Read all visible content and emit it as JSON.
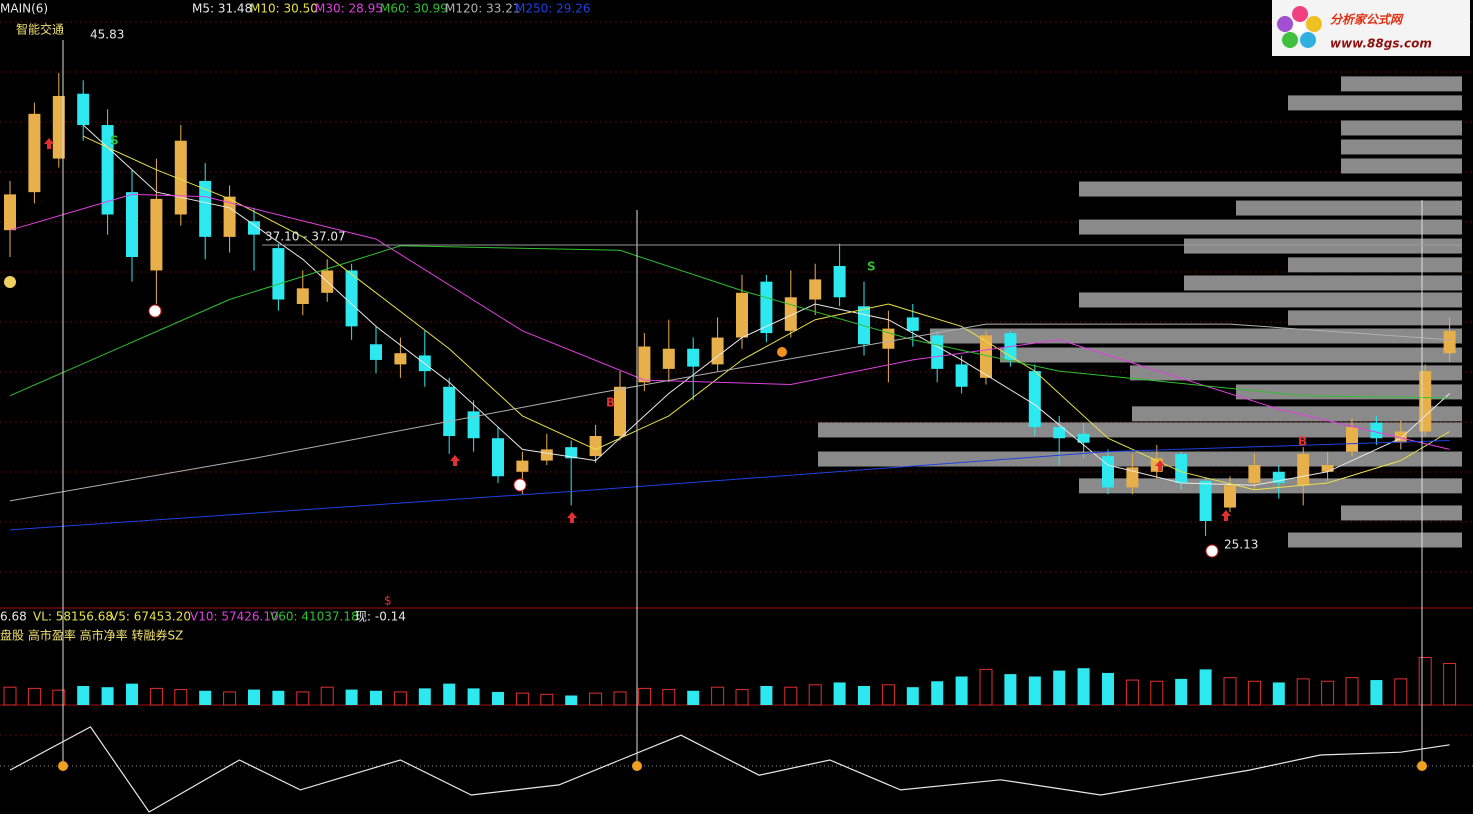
{
  "chart_data": {
    "type": "candlestick",
    "title": "智能交通",
    "indicator": "MAIN(6)",
    "ylim": [
      22,
      49
    ],
    "colors": {
      "up": "#e8b04a",
      "down": "#2ee8f0"
    },
    "open": [
      38.8,
      40.5,
      42.0,
      44.9,
      43.5,
      40.5,
      37.0,
      39.5,
      41.0,
      38.5,
      39.2,
      38.0,
      35.5,
      36.0,
      37.0,
      33.7,
      32.8,
      33.2,
      31.8,
      30.7,
      29.5,
      28.0,
      28.5,
      29.1,
      28.7,
      29.6,
      32.0,
      32.6,
      33.5,
      32.8,
      34.0,
      36.5,
      34.3,
      35.7,
      37.2,
      35.4,
      33.5,
      34.9,
      34.1,
      32.8,
      32.2,
      34.2,
      32.5,
      30.0,
      29.7,
      28.7,
      27.3,
      28.0,
      28.8,
      27.6,
      26.4,
      27.5,
      28.0,
      27.4,
      28.0,
      28.9,
      30.2,
      29.3,
      29.8,
      33.3
    ],
    "high": [
      41.0,
      44.5,
      45.83,
      45.5,
      44.2,
      41.5,
      42.0,
      43.5,
      41.8,
      40.8,
      39.8,
      38.2,
      37.0,
      37.5,
      37.3,
      34.5,
      34.0,
      34.3,
      32.2,
      31.2,
      30.0,
      28.9,
      29.7,
      29.4,
      30.1,
      32.5,
      34.2,
      34.8,
      34.0,
      34.9,
      36.8,
      36.8,
      37.0,
      37.3,
      38.2,
      36.5,
      35.2,
      35.5,
      34.3,
      33.2,
      34.3,
      34.3,
      32.8,
      30.5,
      30.2,
      29.0,
      28.8,
      29.2,
      28.9,
      27.7,
      27.8,
      28.8,
      28.3,
      29.1,
      28.9,
      30.4,
      30.5,
      30.3,
      32.8,
      34.9
    ],
    "low": [
      37.6,
      40.0,
      41.6,
      42.8,
      38.6,
      36.5,
      35.5,
      39.0,
      37.5,
      37.8,
      37.0,
      35.2,
      35.0,
      35.6,
      33.9,
      32.4,
      32.2,
      31.8,
      28.8,
      28.9,
      27.5,
      27.0,
      28.3,
      26.5,
      28.4,
      29.4,
      31.6,
      32.0,
      31.2,
      32.5,
      33.5,
      33.8,
      34.0,
      35.0,
      35.4,
      33.2,
      32.0,
      33.6,
      32.0,
      31.5,
      31.9,
      32.7,
      29.6,
      28.3,
      28.6,
      27.0,
      27.0,
      27.7,
      27.2,
      25.13,
      26.2,
      27.2,
      26.8,
      26.5,
      27.6,
      28.7,
      29.2,
      29.0,
      29.6,
      32.9
    ],
    "close": [
      40.4,
      44.0,
      44.8,
      43.5,
      39.5,
      37.6,
      40.2,
      42.8,
      38.5,
      40.3,
      38.6,
      35.7,
      36.2,
      37.0,
      34.5,
      33.0,
      33.3,
      32.5,
      29.6,
      29.5,
      27.8,
      28.5,
      29.0,
      28.6,
      29.6,
      31.8,
      33.6,
      33.5,
      32.7,
      34.0,
      36.0,
      34.2,
      35.8,
      36.6,
      35.8,
      33.7,
      34.4,
      34.3,
      32.6,
      31.8,
      34.1,
      33.0,
      30.0,
      29.5,
      29.3,
      27.3,
      28.2,
      28.6,
      27.5,
      25.8,
      27.4,
      28.3,
      27.5,
      28.8,
      28.3,
      30.0,
      29.5,
      29.8,
      32.5,
      34.3
    ],
    "ma_lines": [
      {
        "name": "M5: 31.48",
        "color": "#e8e8e8",
        "x": [
          3,
          6,
          9,
          12,
          15,
          18,
          21,
          24,
          27,
          30,
          33,
          36,
          39,
          42,
          45,
          48,
          51,
          54,
          57,
          59
        ],
        "values": [
          43.5,
          40.5,
          39.8,
          37.5,
          34.5,
          32.0,
          29.0,
          28.5,
          31.5,
          34.0,
          35.5,
          34.8,
          33.0,
          31.0,
          28.3,
          27.5,
          27.4,
          28.0,
          29.5,
          31.5
        ]
      },
      {
        "name": "M10: 30.50",
        "color": "#e8e04a",
        "x": [
          3,
          6,
          9,
          12,
          15,
          18,
          21,
          24,
          27,
          30,
          33,
          36,
          39,
          42,
          45,
          48,
          51,
          54,
          57,
          59
        ],
        "values": [
          43.0,
          41.5,
          40.2,
          38.5,
          36.0,
          33.5,
          30.5,
          29.0,
          30.5,
          33.0,
          34.8,
          35.5,
          34.5,
          32.5,
          29.5,
          28.0,
          27.2,
          27.5,
          28.5,
          29.8
        ]
      },
      {
        "name": "M30: 28.95",
        "color": "#e040e0",
        "x": [
          0,
          5,
          8,
          15,
          21,
          26,
          32,
          37,
          43,
          52,
          59
        ],
        "values": [
          38.8,
          40.4,
          40.3,
          38.4,
          34.3,
          32.1,
          31.9,
          33.0,
          33.9,
          30.8,
          29.0
        ]
      },
      {
        "name": "M60: 30.99",
        "color": "#30c030",
        "x": [
          0,
          9,
          16,
          25,
          30,
          37,
          43,
          53,
          59
        ],
        "values": [
          31.4,
          35.7,
          38.1,
          37.9,
          36.1,
          33.9,
          32.5,
          31.4,
          31.3
        ]
      },
      {
        "name": "M120: 33.21",
        "color": "#b0b0b0",
        "x": [
          0,
          10,
          24,
          40,
          50,
          59
        ],
        "values": [
          26.7,
          28.6,
          31.5,
          34.6,
          34.6,
          33.9
        ]
      },
      {
        "name": "M250: 29.26",
        "color": "#2040e0",
        "x": [
          0,
          24,
          45,
          59
        ],
        "values": [
          25.4,
          27.2,
          28.9,
          29.4
        ]
      }
    ],
    "annotations": [
      "45.83",
      "37.10 - 37.07",
      "25.13"
    ],
    "signals": [
      "S",
      "S",
      "B",
      "B",
      "$"
    ],
    "profile": {
      "color": "#8a8a8a",
      "xlim": [
        0,
        700
      ],
      "prices": [
        45.34,
        44.49,
        43.37,
        42.52,
        41.67,
        40.64,
        39.79,
        38.94,
        38.09,
        37.25,
        36.44,
        35.68,
        34.88,
        34.07,
        33.22,
        32.42,
        31.57,
        30.59,
        29.87,
        28.57,
        27.37,
        26.16,
        24.95
      ],
      "volumes": [
        121,
        174,
        121,
        121,
        121,
        383,
        226,
        383,
        278,
        174,
        278,
        383,
        174,
        532,
        462,
        332,
        226,
        330,
        644,
        644,
        383,
        121,
        174
      ]
    },
    "volume": {
      "ylim": [
        0,
        160000
      ],
      "values": [
        30000,
        28000,
        25000,
        32000,
        30000,
        36000,
        28000,
        26000,
        24000,
        22000,
        26000,
        24000,
        22000,
        30000,
        26000,
        24000,
        22000,
        28000,
        36000,
        28000,
        22000,
        20000,
        18000,
        16000,
        20000,
        22000,
        28000,
        26000,
        24000,
        30000,
        26000,
        32000,
        30000,
        34000,
        38000,
        32000,
        34000,
        30000,
        40000,
        48000,
        60000,
        52000,
        48000,
        58000,
        62000,
        54000,
        42000,
        40000,
        44000,
        60000,
        46000,
        40000,
        38000,
        44000,
        40000,
        46000,
        42000,
        44000,
        80000,
        70000
      ],
      "labels": [
        {
          "text": "6.68",
          "color": "#e8e8e8"
        },
        {
          "text": "VL: 58156.68",
          "color": "#e8e04a"
        },
        {
          "text": "V5: 67453.20",
          "color": "#e8e04a"
        },
        {
          "text": "V10: 57426.10",
          "color": "#e040e0"
        },
        {
          "text": "V60: 41037.18",
          "color": "#30c030"
        },
        {
          "text": "现: -0.14",
          "color": "#e8e8e8"
        }
      ]
    },
    "tags": "盘股 高市盈率 高市净率 转融券SZ",
    "oscillator": {
      "ylim": [
        -1,
        1
      ],
      "color": "#e8e8e8",
      "x": [
        0,
        3.3,
        5.7,
        9.4,
        11.9,
        16,
        18.9,
        22.5,
        25,
        27.5,
        30.7,
        33.6,
        36.5,
        40.6,
        44.7,
        50.8,
        53.7,
        57,
        59
      ],
      "values": [
        -0.09,
        0.85,
        -1.0,
        0.13,
        -0.52,
        0.13,
        -0.63,
        -0.41,
        0.13,
        0.67,
        -0.2,
        0.13,
        -0.52,
        -0.3,
        -0.63,
        -0.09,
        0.24,
        0.3,
        0.46
      ]
    },
    "logo": {
      "title": "分析家公式网",
      "url": "www.88gs.com"
    }
  }
}
